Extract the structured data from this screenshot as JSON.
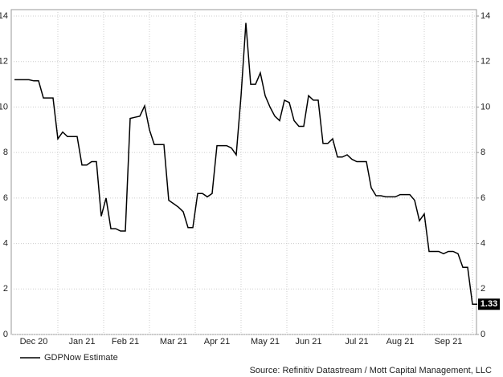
{
  "chart_data": {
    "type": "line",
    "categories": [
      null,
      null,
      null,
      null,
      "Dec 20",
      null,
      null,
      null,
      null,
      null,
      null,
      null,
      null,
      null,
      "Jan 21",
      null,
      null,
      null,
      null,
      null,
      null,
      null,
      null,
      "Feb 21",
      null,
      null,
      null,
      null,
      null,
      null,
      null,
      null,
      null,
      "Mar 21",
      null,
      null,
      null,
      null,
      null,
      null,
      null,
      null,
      "Apr 21",
      null,
      null,
      null,
      null,
      null,
      null,
      null,
      null,
      null,
      "May 21",
      null,
      null,
      null,
      null,
      null,
      null,
      null,
      null,
      "Jun 21",
      null,
      null,
      null,
      null,
      null,
      null,
      null,
      null,
      null,
      "Jul 21",
      null,
      null,
      null,
      null,
      null,
      null,
      null,
      null,
      "Aug 21",
      null,
      null,
      null,
      null,
      null,
      null,
      null,
      null,
      null,
      "Sep 21",
      null,
      null,
      null,
      null,
      null,
      null
    ],
    "series": [
      {
        "name": "GDPNow Estimate",
        "color": "#000000",
        "values": [
          11.2,
          11.2,
          11.2,
          11.2,
          11.15,
          11.15,
          10.4,
          10.4,
          10.4,
          8.6,
          8.9,
          8.7,
          8.7,
          8.7,
          7.45,
          7.45,
          7.6,
          7.6,
          5.2,
          6.0,
          4.65,
          4.65,
          4.55,
          4.55,
          9.5,
          9.55,
          9.6,
          10.05,
          9.0,
          8.35,
          8.35,
          8.35,
          5.9,
          5.75,
          5.6,
          5.4,
          4.7,
          4.7,
          6.2,
          6.2,
          6.05,
          6.2,
          8.3,
          8.3,
          8.3,
          8.2,
          7.9,
          10.5,
          13.7,
          11.0,
          11.0,
          11.5,
          10.5,
          10.0,
          9.6,
          9.4,
          10.3,
          10.2,
          9.4,
          9.15,
          9.15,
          10.5,
          10.3,
          10.3,
          8.4,
          8.4,
          8.6,
          7.8,
          7.8,
          7.9,
          7.7,
          7.6,
          7.6,
          7.6,
          6.45,
          6.1,
          6.1,
          6.05,
          6.05,
          6.05,
          6.15,
          6.15,
          6.15,
          5.9,
          5.0,
          5.3,
          3.65,
          3.65,
          3.65,
          3.55,
          3.65,
          3.65,
          3.55,
          2.95,
          2.95,
          1.33,
          1.33
        ]
      }
    ],
    "ylim": [
      0,
      14
    ],
    "yticks": [
      0,
      2,
      4,
      6,
      8,
      10,
      12,
      14
    ],
    "y2lim": [
      0,
      14
    ],
    "y2ticks": [
      0,
      2,
      4,
      6,
      8,
      10,
      12,
      14
    ],
    "grid": true,
    "source": "Source: Refinitiv Datastream / Mott Capital Management, LLC"
  }
}
